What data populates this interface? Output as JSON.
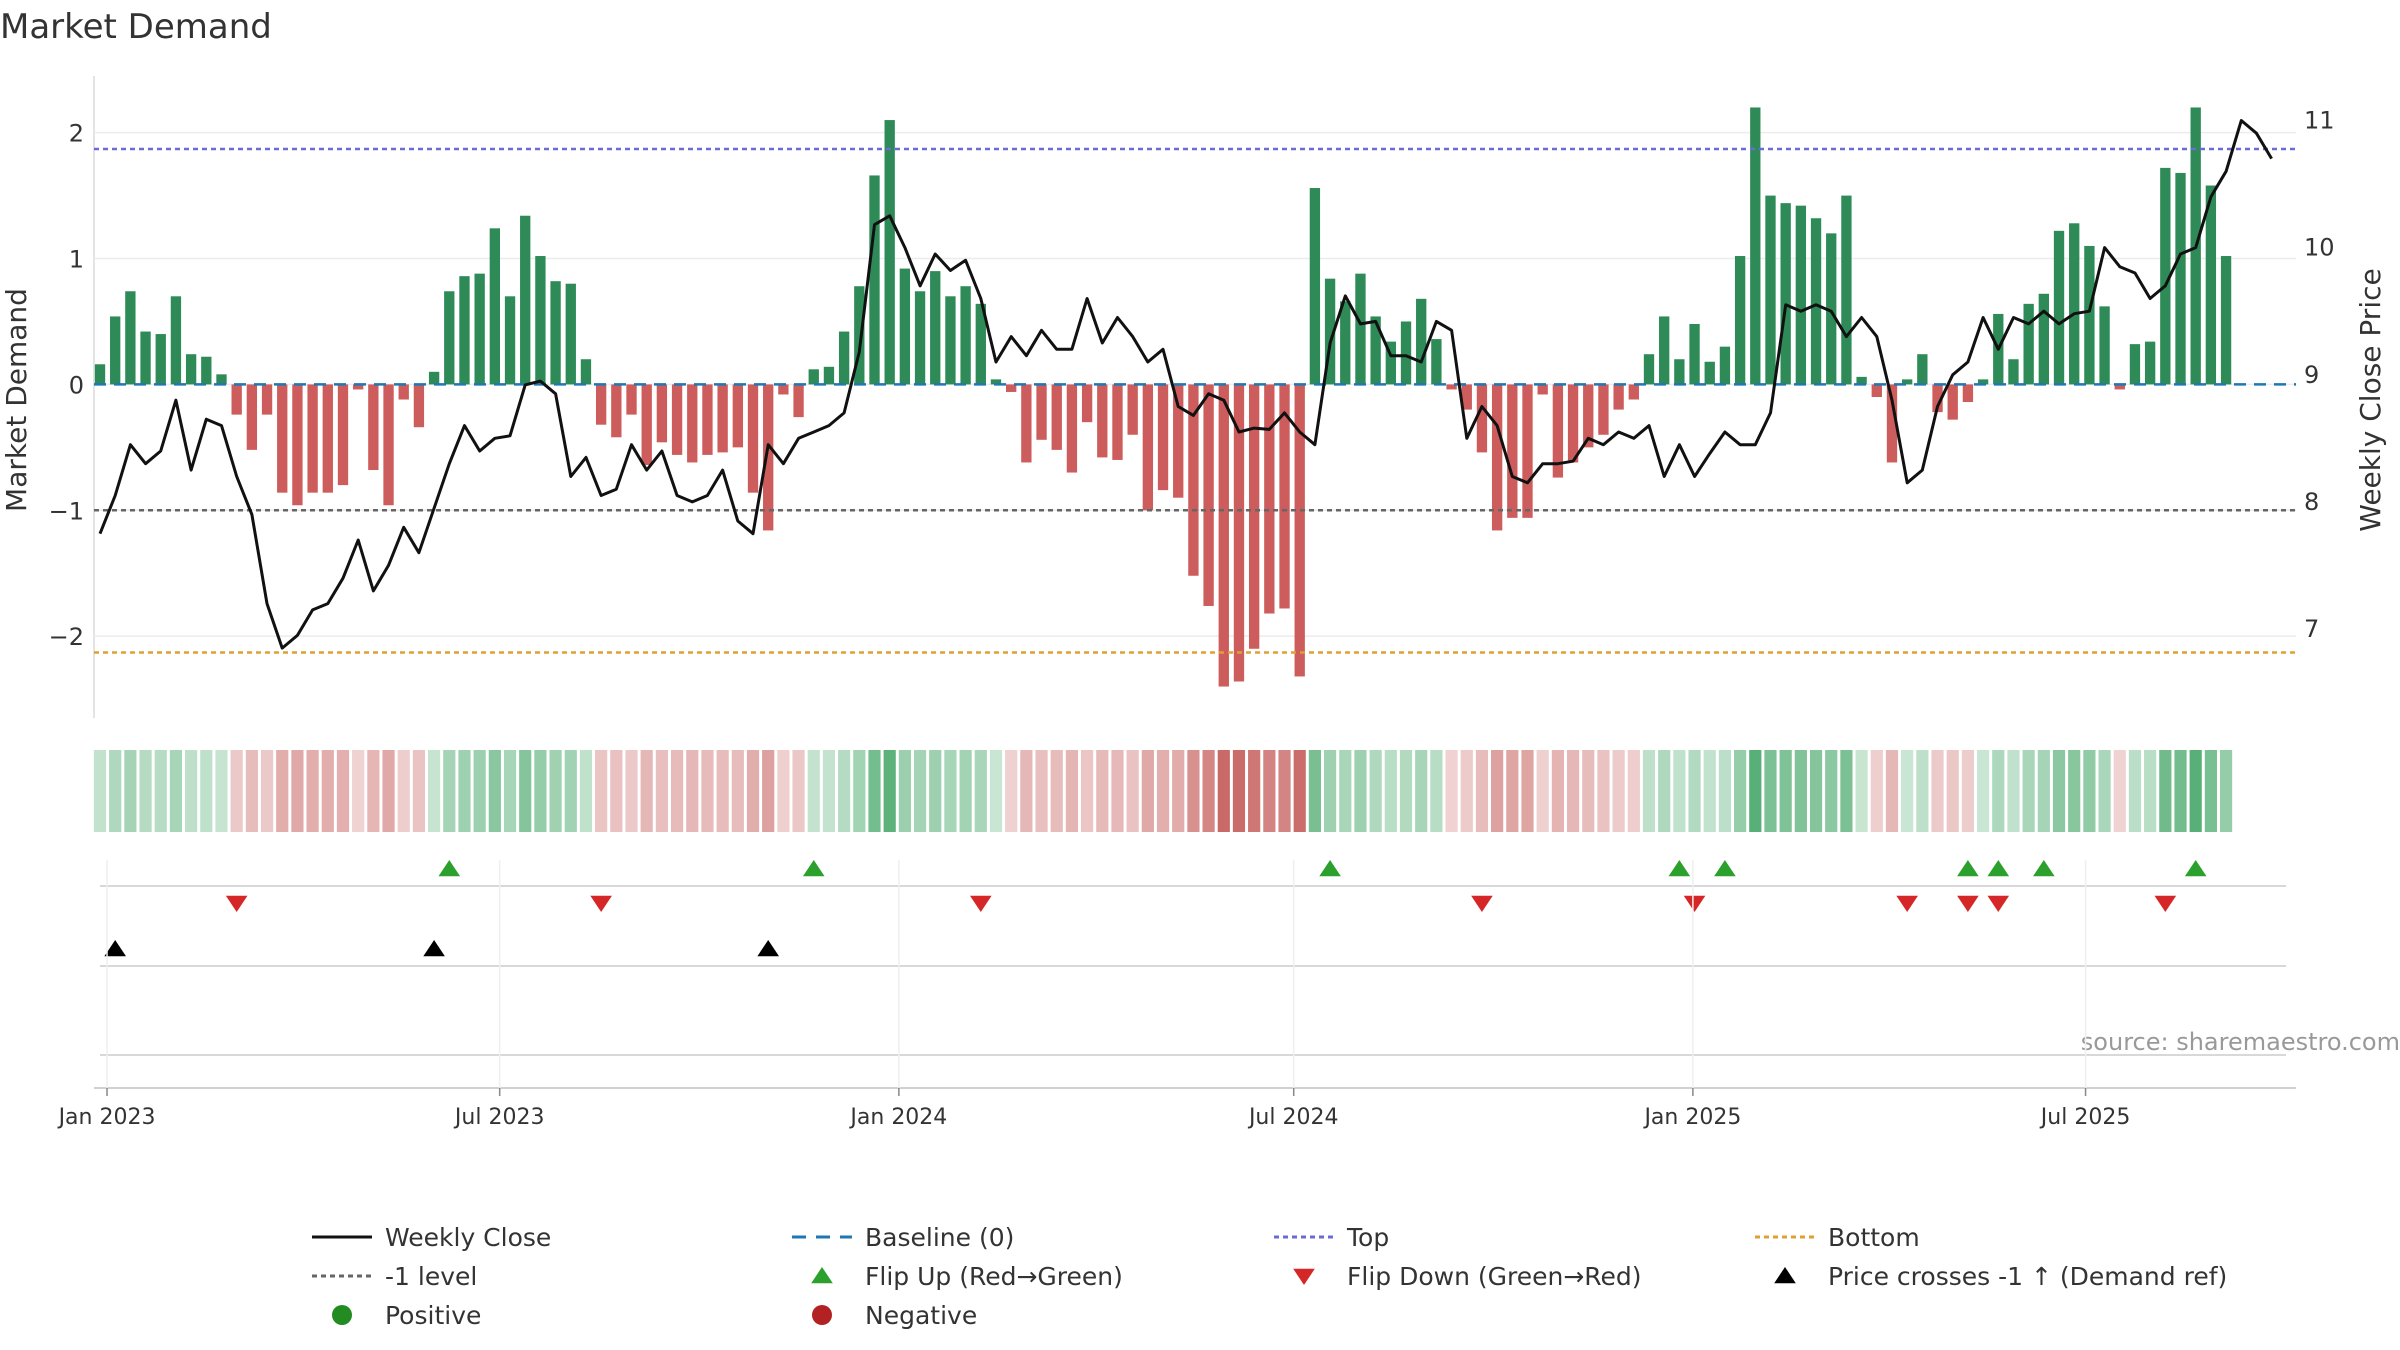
{
  "chart_data": {
    "type": "bar",
    "title": "Market Demand",
    "ylabel": "Market Demand",
    "y2label": "Weekly Close Price",
    "ylim": [
      -2.65,
      2.45
    ],
    "y2lim": [
      6.3,
      11.35
    ],
    "yticks": [
      {
        "v": 2,
        "label": "2"
      },
      {
        "v": 1,
        "label": "1"
      },
      {
        "v": 0,
        "label": "0"
      },
      {
        "v": -1,
        "label": "−1"
      },
      {
        "v": -2,
        "label": "−2"
      }
    ],
    "y2ticks": [
      {
        "v": 11,
        "label": "11"
      },
      {
        "v": 10,
        "label": "10"
      },
      {
        "v": 9,
        "label": "9"
      },
      {
        "v": 8,
        "label": "8"
      },
      {
        "v": 7,
        "label": "7"
      }
    ],
    "x_start": "2022-12-26",
    "x_end": "2025-10-06",
    "xticks": [
      {
        "date": "2023-01-01",
        "label": "Jan 2023"
      },
      {
        "date": "2023-07-01",
        "label": "Jul 2023"
      },
      {
        "date": "2024-01-01",
        "label": "Jan 2024"
      },
      {
        "date": "2024-07-01",
        "label": "Jul 2024"
      },
      {
        "date": "2025-01-01",
        "label": "Jan 2025"
      },
      {
        "date": "2025-07-01",
        "label": "Jul 2025"
      }
    ],
    "start_date": "2022-12-26",
    "week_step_days": 7,
    "demand": [
      0.16,
      0.54,
      0.74,
      0.42,
      0.4,
      0.7,
      0.24,
      0.22,
      0.08,
      -0.24,
      -0.52,
      -0.24,
      -0.86,
      -0.96,
      -0.86,
      -0.86,
      -0.8,
      -0.04,
      -0.68,
      -0.96,
      -0.12,
      -0.34,
      0.1,
      0.74,
      0.86,
      0.88,
      1.24,
      0.7,
      1.34,
      1.02,
      0.82,
      0.8,
      0.2,
      -0.32,
      -0.42,
      -0.24,
      -0.64,
      -0.46,
      -0.56,
      -0.62,
      -0.56,
      -0.54,
      -0.5,
      -0.86,
      -1.16,
      -0.08,
      -0.26,
      0.12,
      0.14,
      0.42,
      0.78,
      1.66,
      2.1,
      0.92,
      0.74,
      0.9,
      0.7,
      0.78,
      0.64,
      0.04,
      -0.06,
      -0.62,
      -0.44,
      -0.52,
      -0.7,
      -0.3,
      -0.58,
      -0.6,
      -0.4,
      -1.0,
      -0.84,
      -0.9,
      -1.52,
      -1.76,
      -2.4,
      -2.36,
      -2.1,
      -1.82,
      -1.78,
      -2.32,
      1.56,
      0.84,
      0.66,
      0.88,
      0.54,
      0.34,
      0.5,
      0.68,
      0.36,
      -0.04,
      -0.2,
      -0.54,
      -1.16,
      -1.06,
      -1.06,
      -0.08,
      -0.74,
      -0.62,
      -0.5,
      -0.4,
      -0.2,
      -0.12,
      0.24,
      0.54,
      0.2,
      0.48,
      0.18,
      0.3,
      1.02,
      2.2,
      1.5,
      1.44,
      1.42,
      1.32,
      1.2,
      1.5,
      0.06,
      -0.1,
      -0.62,
      0.04,
      0.24,
      -0.22,
      -0.28,
      -0.14,
      0.04,
      0.56,
      0.2,
      0.64,
      0.72,
      1.22,
      1.28,
      1.1,
      0.62,
      -0.04,
      0.32,
      0.34,
      1.72,
      1.68,
      2.2,
      1.58,
      1.02
    ],
    "price": [
      7.75,
      8.05,
      8.45,
      8.3,
      8.4,
      8.8,
      8.25,
      8.65,
      8.6,
      8.2,
      7.9,
      7.2,
      6.85,
      6.95,
      7.15,
      7.2,
      7.4,
      7.7,
      7.3,
      7.5,
      7.8,
      7.6,
      7.95,
      8.3,
      8.6,
      8.4,
      8.5,
      8.52,
      8.92,
      8.95,
      8.85,
      8.2,
      8.35,
      8.05,
      8.1,
      8.45,
      8.25,
      8.4,
      8.05,
      8.0,
      8.05,
      8.25,
      7.85,
      7.75,
      8.45,
      8.3,
      8.5,
      8.55,
      8.6,
      8.7,
      9.18,
      10.18,
      10.25,
      10.0,
      9.7,
      9.95,
      9.82,
      9.9,
      9.6,
      9.1,
      9.3,
      9.15,
      9.35,
      9.2,
      9.2,
      9.6,
      9.25,
      9.45,
      9.3,
      9.1,
      9.2,
      8.75,
      8.68,
      8.85,
      8.8,
      8.55,
      8.58,
      8.57,
      8.7,
      8.55,
      8.45,
      9.25,
      9.62,
      9.4,
      9.42,
      9.15,
      9.15,
      9.1,
      9.42,
      9.35,
      8.5,
      8.75,
      8.6,
      8.2,
      8.15,
      8.3,
      8.3,
      8.32,
      8.5,
      8.45,
      8.55,
      8.5,
      8.6,
      8.2,
      8.45,
      8.2,
      8.38,
      8.55,
      8.45,
      8.45,
      8.7,
      9.55,
      9.5,
      9.55,
      9.5,
      9.3,
      9.45,
      9.3,
      8.8,
      8.15,
      8.25,
      8.75,
      9.0,
      9.1,
      9.45,
      9.2,
      9.45,
      9.4,
      9.5,
      9.4,
      9.48,
      9.5,
      10.0,
      9.85,
      9.8,
      9.6,
      9.7,
      9.95,
      10.0,
      10.4,
      10.6,
      11.0,
      10.9,
      10.7
    ],
    "top_level": 1.87,
    "bottom_level": -2.13,
    "minus_one_level": -1,
    "flip_up_weeks": [
      23,
      47,
      81,
      104,
      107,
      123,
      125,
      128,
      138
    ],
    "flip_down_weeks": [
      9,
      33,
      58,
      91,
      105,
      119,
      123,
      125,
      136
    ],
    "price_cross_weeks": [
      1,
      22,
      44
    ],
    "colors": {
      "positive_bar": "#2e8b57",
      "negative_bar": "#cd5c5c",
      "price_line": "#111111",
      "baseline": "#1f77b4",
      "top": "#6b6bd6",
      "bottom": "#e0a030",
      "minus_one": "#666666",
      "flip_up": "#2ca02c",
      "flip_down": "#d62728",
      "price_cross": "#000000",
      "positive_dot": "#228b22",
      "negative_dot": "#b22222"
    },
    "legend": [
      {
        "label": "Weekly Close",
        "marker": "solid-line"
      },
      {
        "label": "Baseline (0)",
        "marker": "dashed-line"
      },
      {
        "label": "Top",
        "marker": "dotted-line"
      },
      {
        "label": "Bottom",
        "marker": "dotted-line"
      },
      {
        "label": "-1 level",
        "marker": "dotted-line"
      },
      {
        "label": "Flip Up (Red→Green)",
        "marker": "up-triangle"
      },
      {
        "label": "Flip Down (Green→Red)",
        "marker": "down-triangle"
      },
      {
        "label": "Price crosses -1 ↑ (Demand ref)",
        "marker": "up-triangle"
      },
      {
        "label": "Positive",
        "marker": "dot"
      },
      {
        "label": "Negative",
        "marker": "dot"
      }
    ],
    "legend_position": "bottom",
    "source": "source: sharemaestro.com"
  }
}
